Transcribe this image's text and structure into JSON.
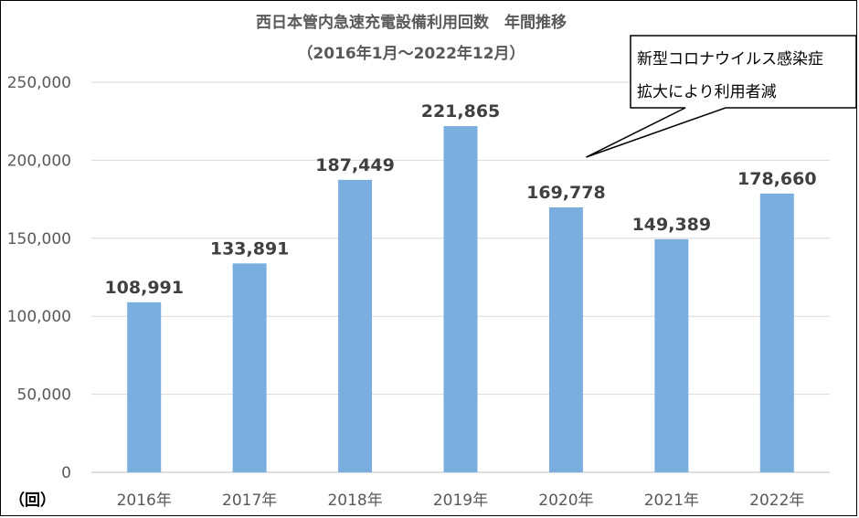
{
  "chart_data": {
    "type": "bar",
    "title": "西日本管内急速充電設備利用回数　年間推移",
    "subtitle": "（2016年1月～2022年12月）",
    "categories": [
      "2016年",
      "2017年",
      "2018年",
      "2019年",
      "2020年",
      "2021年",
      "2022年"
    ],
    "values": [
      108991,
      133891,
      187449,
      221865,
      169778,
      149389,
      178660
    ],
    "value_labels": [
      "108,991",
      "133,891",
      "187,449",
      "221,865",
      "169,778",
      "149,389",
      "178,660"
    ],
    "ylim": [
      0,
      250000
    ],
    "yticks": [
      "0",
      "50,000",
      "100,000",
      "150,000",
      "200,000",
      "250,000"
    ],
    "ytick_values": [
      0,
      50000,
      100000,
      150000,
      200000,
      250000
    ],
    "ylabel": "（回）",
    "xlabel": "",
    "grid": true,
    "bar_color": "#7aaede",
    "annotation": {
      "line1": "新型コロナウイルス感染症",
      "line2": "拡大により利用者減",
      "points_to": "2020年"
    }
  }
}
